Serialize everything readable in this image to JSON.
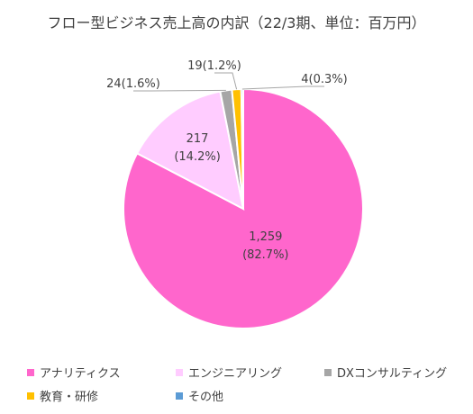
{
  "chart_data": {
    "type": "pie",
    "title": "フロー型ビジネス売上高の内訳（22/3期、単位：百万円）",
    "start_angle_deg": 0,
    "direction": "clockwise",
    "legend_position": "bottom",
    "slices": [
      {
        "name": "アナリティクス",
        "value": 1259,
        "percent_label": "(82.7%)",
        "value_label": "1,259",
        "color": "#FF66CC"
      },
      {
        "name": "エンジニアリング",
        "value": 217,
        "percent_label": "(14.2%)",
        "value_label": "217",
        "color": "#FFCCFF"
      },
      {
        "name": "DXコンサルティング",
        "value": 24,
        "percent_label": "(1.6%)",
        "value_label": "24",
        "color": "#A6A6A6"
      },
      {
        "name": "教育・研修",
        "value": 19,
        "percent_label": "(1.2%)",
        "value_label": "19",
        "color": "#FFC000"
      },
      {
        "name": "その他",
        "value": 4,
        "percent_label": "(0.3%)",
        "value_label": "4",
        "color": "#5B9BD5"
      }
    ]
  }
}
